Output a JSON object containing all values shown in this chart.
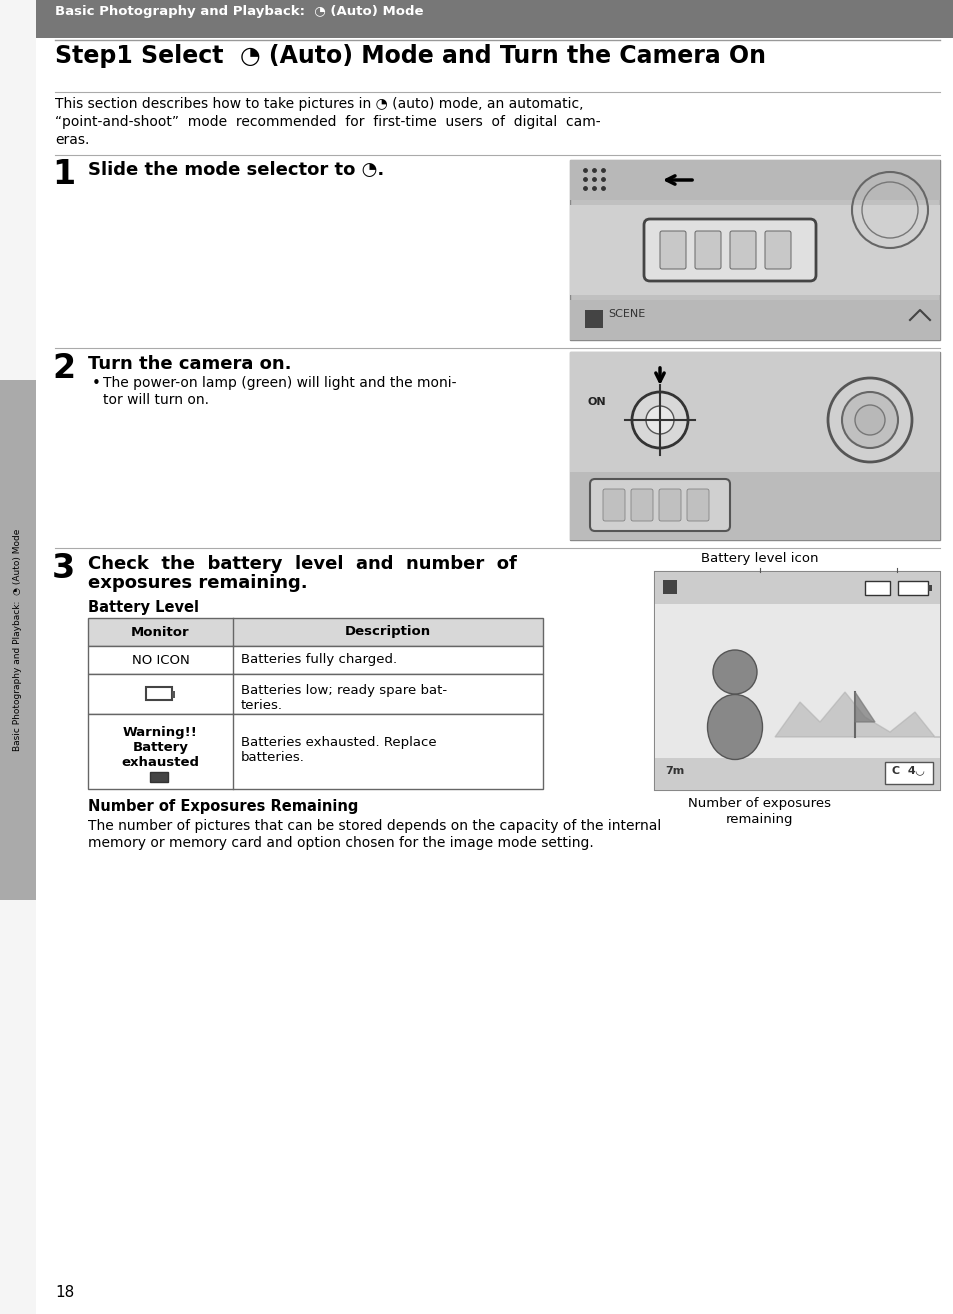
{
  "bg_color": "#ffffff",
  "header_bg": "#808080",
  "header_text": "Basic Photography and Playback:  📷 (Auto) Mode",
  "title_text": "Step1 Select  (Auto) Mode and Turn the Camera On",
  "intro_line1": "This section describes how to take pictures in  (auto) mode, an automatic,",
  "intro_line2": "“point-and-shoot”  mode  recommended  for  first-time  users  of  digital  cam-",
  "intro_line3": "eras.",
  "step1_num": "1",
  "step1_text": "Slide the mode selector to  .",
  "step2_num": "2",
  "step2_head": "Turn the camera on.",
  "step2_bullet1": "The power-on lamp (green) will light and the moni-",
  "step2_bullet2": "tor will turn on.",
  "step3_num": "3",
  "step3_head1": "Check  the  battery  level  and  number  of",
  "step3_head2": "exposures remaining.",
  "battery_level_label": "Battery Level",
  "battery_level_icon_label": "Battery level icon",
  "table_header_col1": "Monitor",
  "table_header_col2": "Description",
  "row1_col1": "NO ICON",
  "row1_col2": "Batteries fully charged.",
  "row2_col1": "□",
  "row2_col2a": "Batteries low; ready spare bat-",
  "row2_col2b": "teries.",
  "row3_col1a": "Warning!!",
  "row3_col1b": "Battery",
  "row3_col1c": "exhausted",
  "row3_col1d": "□",
  "row3_col2a": "Batteries exhausted. Replace",
  "row3_col2b": "batteries.",
  "num_exp_label1": "Number of exposures",
  "num_exp_label2": "remaining",
  "num_exp_head": "Number of Exposures Remaining",
  "num_exp_text1": "The number of pictures that can be stored depends on the capacity of the internal",
  "num_exp_text2": "memory or memory card and option chosen for the image mode setting.",
  "page_num": "18",
  "sidebar_text": "Basic Photography and Playback:  □ (Auto) Mode",
  "header_bg_color": "#777777",
  "header_text_color": "#ffffff",
  "sidebar_bg_color": "#aaaaaa",
  "divider_color": "#999999",
  "table_bg_header": "#d8d8d8",
  "table_border": "#666666",
  "img_bg": "#c8c8c8",
  "img_bg_dark": "#b0b0b0",
  "img_border": "#888888"
}
